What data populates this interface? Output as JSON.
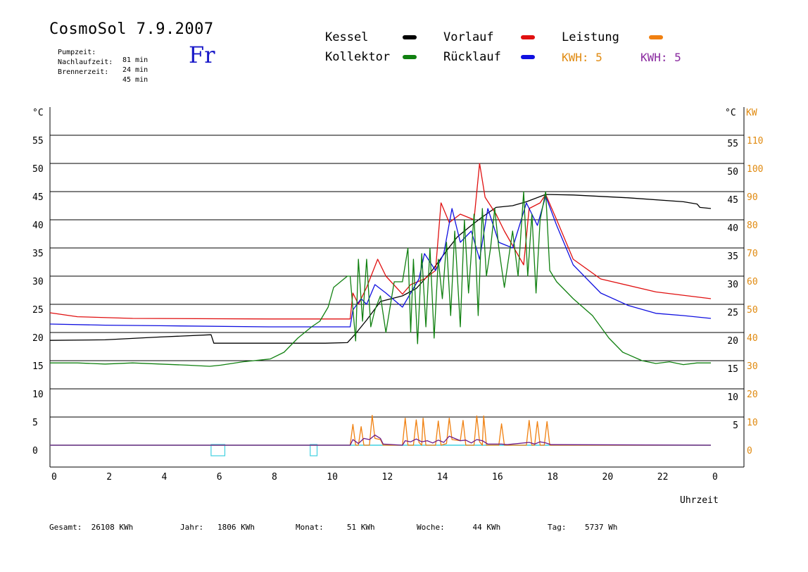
{
  "header": {
    "title": "CosmoSol 7.9.2007",
    "day": "Fr",
    "times": [
      {
        "label": "Pumpzeit:",
        "value": "81 min"
      },
      {
        "label": "Nachlaufzeit:",
        "value": "24 min"
      },
      {
        "label": "Brennerzeit:",
        "value": "45 min"
      }
    ]
  },
  "legend": {
    "items": [
      {
        "label": "Kessel",
        "color": "#000000"
      },
      {
        "label": "Vorlauf",
        "color": "#e01010"
      },
      {
        "label": "Leistung",
        "color": "#f08010"
      },
      {
        "label": "Kollektor",
        "color": "#108010"
      },
      {
        "label": "Rücklauf",
        "color": "#1010e0"
      }
    ],
    "kwh": [
      {
        "text": "KWH: 5",
        "color": "#e08a10"
      },
      {
        "text": "KWH: 5",
        "color": "#8a2aa0"
      }
    ]
  },
  "footer": [
    {
      "label": "Gesamt:",
      "value": "26108 KWh"
    },
    {
      "label": "Jahr:",
      "value": "1806 KWh"
    },
    {
      "label": "Monat:",
      "value": "51 KWh"
    },
    {
      "label": "Woche:",
      "value": "44 KWh"
    },
    {
      "label": "Tag:",
      "value": "5737 Wh"
    }
  ],
  "chart_data": {
    "type": "line",
    "xlabel": "Uhrzeit",
    "ylabel_left": "°C",
    "ylabel_right_c": "°C",
    "ylabel_right_kw": "KW",
    "x_ticks": [
      "0",
      "2",
      "4",
      "6",
      "8",
      "10",
      "12",
      "14",
      "16",
      "18",
      "20",
      "22",
      "0"
    ],
    "y_left_ticks": [
      "0",
      "5",
      "10",
      "15",
      "20",
      "25",
      "30",
      "35",
      "40",
      "45",
      "50",
      "55"
    ],
    "y_right_c_ticks": [
      "5",
      "10",
      "15",
      "20",
      "25",
      "30",
      "35",
      "40",
      "45",
      "50",
      "55"
    ],
    "y_right_kw_ticks": [
      "0",
      "10",
      "20",
      "30",
      "40",
      "50",
      "60",
      "70",
      "80",
      "90",
      "100",
      "110"
    ],
    "xlim": [
      0,
      24
    ],
    "ylim": [
      -4,
      60
    ],
    "grid": true,
    "zero_line_color": "#40d0e0",
    "markers": [
      {
        "x_start": 5.85,
        "x_end": 6.35,
        "label": ""
      },
      {
        "x_start": 9.45,
        "x_end": 9.7,
        "label": ""
      }
    ],
    "series": [
      {
        "name": "Kessel",
        "color": "#000000",
        "points": [
          [
            0,
            18.6
          ],
          [
            2,
            18.7
          ],
          [
            4,
            19.2
          ],
          [
            5.85,
            19.6
          ],
          [
            5.95,
            18.1
          ],
          [
            8,
            18.1
          ],
          [
            10,
            18.1
          ],
          [
            10.8,
            18.2
          ],
          [
            11.1,
            19.8
          ],
          [
            11.5,
            22.2
          ],
          [
            12,
            25.5
          ],
          [
            12.8,
            26.5
          ],
          [
            13.3,
            27.8
          ],
          [
            13.8,
            30.5
          ],
          [
            14.4,
            34.5
          ],
          [
            14.8,
            37
          ],
          [
            15.3,
            39
          ],
          [
            15.7,
            40.5
          ],
          [
            16.2,
            42.2
          ],
          [
            16.8,
            42.5
          ],
          [
            17.3,
            43.2
          ],
          [
            18,
            44.5
          ],
          [
            19,
            44.4
          ],
          [
            21,
            43.9
          ],
          [
            23,
            43.2
          ],
          [
            23.5,
            42.8
          ],
          [
            23.6,
            42.2
          ],
          [
            24,
            42
          ]
        ]
      },
      {
        "name": "Vorlauf",
        "color": "#e01010",
        "points": [
          [
            0,
            23.5
          ],
          [
            1,
            22.8
          ],
          [
            3,
            22.5
          ],
          [
            8,
            22.4
          ],
          [
            10.9,
            22.4
          ],
          [
            11,
            27
          ],
          [
            11.2,
            25
          ],
          [
            11.5,
            28
          ],
          [
            11.9,
            33
          ],
          [
            12.2,
            30
          ],
          [
            12.8,
            26.8
          ],
          [
            13.1,
            28.5
          ],
          [
            13.6,
            29.5
          ],
          [
            14,
            31
          ],
          [
            14.2,
            43
          ],
          [
            14.5,
            39.5
          ],
          [
            14.9,
            41
          ],
          [
            15.4,
            40
          ],
          [
            15.6,
            50
          ],
          [
            15.8,
            44
          ],
          [
            16.2,
            41
          ],
          [
            16.5,
            38
          ],
          [
            17.2,
            32
          ],
          [
            17.4,
            42
          ],
          [
            17.8,
            43
          ],
          [
            18,
            44.5
          ],
          [
            18.4,
            40
          ],
          [
            19,
            33
          ],
          [
            20,
            29.5
          ],
          [
            22,
            27.2
          ],
          [
            24,
            26
          ]
        ]
      },
      {
        "name": "Rücklauf",
        "color": "#1010e0",
        "points": [
          [
            0,
            21.5
          ],
          [
            2,
            21.3
          ],
          [
            4,
            21.2
          ],
          [
            8,
            21
          ],
          [
            10.9,
            21
          ],
          [
            11,
            24
          ],
          [
            11.3,
            26
          ],
          [
            11.5,
            25
          ],
          [
            11.8,
            28.5
          ],
          [
            12.2,
            27
          ],
          [
            12.8,
            24.5
          ],
          [
            13.1,
            27
          ],
          [
            13.4,
            29.5
          ],
          [
            13.6,
            34
          ],
          [
            14,
            31
          ],
          [
            14.3,
            34
          ],
          [
            14.6,
            42
          ],
          [
            14.9,
            36
          ],
          [
            15.3,
            38
          ],
          [
            15.6,
            33
          ],
          [
            15.9,
            42
          ],
          [
            16.3,
            36
          ],
          [
            16.8,
            35
          ],
          [
            17.3,
            43
          ],
          [
            17.7,
            39
          ],
          [
            18,
            44.2
          ],
          [
            18.4,
            39
          ],
          [
            19,
            32
          ],
          [
            20,
            27
          ],
          [
            21,
            24.8
          ],
          [
            22,
            23.4
          ],
          [
            23,
            23
          ],
          [
            24,
            22.5
          ]
        ]
      },
      {
        "name": "Kollektor",
        "color": "#108010",
        "points": [
          [
            0,
            14.6
          ],
          [
            1,
            14.6
          ],
          [
            2,
            14.4
          ],
          [
            3,
            14.6
          ],
          [
            4,
            14.4
          ],
          [
            5,
            14.2
          ],
          [
            5.8,
            14
          ],
          [
            6.2,
            14.2
          ],
          [
            7,
            14.8
          ],
          [
            8,
            15.3
          ],
          [
            8.5,
            16.5
          ],
          [
            9,
            19
          ],
          [
            9.5,
            21
          ],
          [
            9.8,
            22
          ],
          [
            10.1,
            24.5
          ],
          [
            10.3,
            28
          ],
          [
            10.6,
            29.2
          ],
          [
            10.8,
            30
          ],
          [
            10.9,
            30
          ],
          [
            11.1,
            18.5
          ],
          [
            11.2,
            33
          ],
          [
            11.35,
            22
          ],
          [
            11.5,
            33
          ],
          [
            11.65,
            21
          ],
          [
            11.8,
            24
          ],
          [
            12,
            26.5
          ],
          [
            12.2,
            20
          ],
          [
            12.5,
            29
          ],
          [
            12.8,
            29
          ],
          [
            13,
            35
          ],
          [
            13.1,
            20
          ],
          [
            13.2,
            33
          ],
          [
            13.35,
            18
          ],
          [
            13.5,
            34
          ],
          [
            13.65,
            21
          ],
          [
            13.8,
            35
          ],
          [
            13.95,
            19
          ],
          [
            14.1,
            33
          ],
          [
            14.25,
            26
          ],
          [
            14.4,
            36
          ],
          [
            14.55,
            23
          ],
          [
            14.7,
            38
          ],
          [
            14.9,
            21
          ],
          [
            15.05,
            40
          ],
          [
            15.2,
            27
          ],
          [
            15.4,
            41
          ],
          [
            15.55,
            23
          ],
          [
            15.7,
            42
          ],
          [
            15.85,
            30
          ],
          [
            16,
            35
          ],
          [
            16.15,
            42
          ],
          [
            16.3,
            35
          ],
          [
            16.5,
            28
          ],
          [
            16.8,
            38
          ],
          [
            17,
            30
          ],
          [
            17.2,
            45
          ],
          [
            17.35,
            30
          ],
          [
            17.5,
            41
          ],
          [
            17.65,
            27
          ],
          [
            17.8,
            40
          ],
          [
            18,
            45
          ],
          [
            18.15,
            31
          ],
          [
            18.4,
            29
          ],
          [
            19,
            26
          ],
          [
            19.7,
            23
          ],
          [
            20.3,
            19
          ],
          [
            20.8,
            16.5
          ],
          [
            21.5,
            15
          ],
          [
            22,
            14.5
          ],
          [
            22.5,
            14.8
          ],
          [
            23,
            14.3
          ],
          [
            23.5,
            14.6
          ],
          [
            24,
            14.6
          ]
        ]
      },
      {
        "name": "Leistung",
        "color": "#f08010",
        "points": [
          [
            0,
            0
          ],
          [
            10.9,
            0
          ],
          [
            11,
            3.7
          ],
          [
            11.1,
            0
          ],
          [
            11.2,
            0
          ],
          [
            11.3,
            3.3
          ],
          [
            11.4,
            0
          ],
          [
            11.6,
            0
          ],
          [
            11.7,
            5.3
          ],
          [
            11.8,
            1.2
          ],
          [
            12,
            1
          ],
          [
            12.1,
            0
          ],
          [
            12.8,
            0
          ],
          [
            12.9,
            4.8
          ],
          [
            13,
            0
          ],
          [
            13.2,
            0
          ],
          [
            13.3,
            4.5
          ],
          [
            13.4,
            0.5
          ],
          [
            13.5,
            0
          ],
          [
            13.55,
            4.8
          ],
          [
            13.65,
            0
          ],
          [
            14,
            0
          ],
          [
            14.1,
            4.3
          ],
          [
            14.2,
            0
          ],
          [
            14.4,
            0.3
          ],
          [
            14.5,
            4.8
          ],
          [
            14.6,
            1
          ],
          [
            14.9,
            0.8
          ],
          [
            15,
            4.4
          ],
          [
            15.1,
            0
          ],
          [
            15.4,
            0
          ],
          [
            15.5,
            5.2
          ],
          [
            15.6,
            0.6
          ],
          [
            15.7,
            0
          ],
          [
            15.75,
            5.2
          ],
          [
            15.85,
            0
          ],
          [
            16.3,
            0
          ],
          [
            16.4,
            3.8
          ],
          [
            16.5,
            0
          ],
          [
            17.3,
            0
          ],
          [
            17.4,
            4.4
          ],
          [
            17.5,
            0
          ],
          [
            17.6,
            0
          ],
          [
            17.7,
            4.2
          ],
          [
            17.8,
            0
          ],
          [
            17.95,
            0
          ],
          [
            18.05,
            4.2
          ],
          [
            18.15,
            0
          ],
          [
            24,
            0
          ]
        ]
      },
      {
        "name": "",
        "color": "#6a1a8a",
        "points": [
          [
            0,
            0
          ],
          [
            10.9,
            0
          ],
          [
            11,
            1
          ],
          [
            11.2,
            0.3
          ],
          [
            11.4,
            1.2
          ],
          [
            11.6,
            1
          ],
          [
            11.8,
            1.8
          ],
          [
            12,
            1.2
          ],
          [
            12.1,
            0.2
          ],
          [
            12.8,
            0
          ],
          [
            12.9,
            0.8
          ],
          [
            13.1,
            0.6
          ],
          [
            13.3,
            1.1
          ],
          [
            13.5,
            0.6
          ],
          [
            13.7,
            0.8
          ],
          [
            13.9,
            0.4
          ],
          [
            14.1,
            0.9
          ],
          [
            14.3,
            0.5
          ],
          [
            14.5,
            1.6
          ],
          [
            14.7,
            1.2
          ],
          [
            14.9,
            0.8
          ],
          [
            15.1,
            0.9
          ],
          [
            15.3,
            0.4
          ],
          [
            15.5,
            1
          ],
          [
            15.7,
            0.8
          ],
          [
            15.9,
            0.2
          ],
          [
            16.4,
            0.2
          ],
          [
            16.6,
            0.1
          ],
          [
            17.4,
            0.5
          ],
          [
            17.6,
            0.2
          ],
          [
            17.8,
            0.6
          ],
          [
            18,
            0.4
          ],
          [
            18.2,
            0.1
          ],
          [
            24,
            0
          ]
        ]
      }
    ]
  }
}
